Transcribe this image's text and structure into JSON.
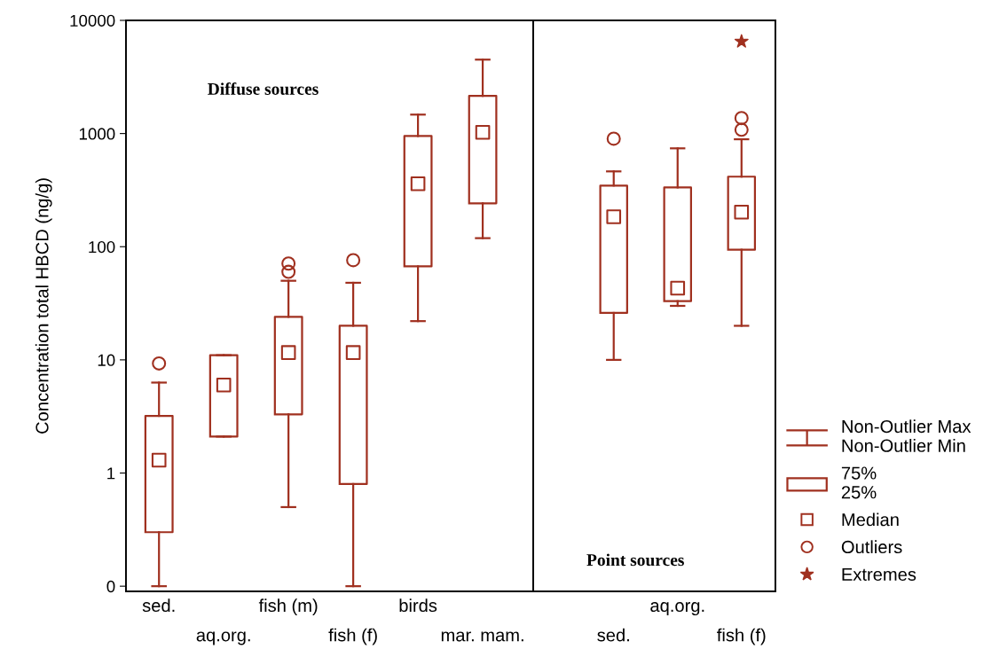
{
  "chart_data": [
    {
      "type": "box",
      "ylabel": "Concentration total HBCD (ng/g)",
      "log": "y",
      "ylim": [
        0.09,
        10000
      ],
      "yticks": [
        {
          "value": 0.1,
          "label": "0"
        },
        1,
        10,
        100,
        1000,
        10000
      ],
      "categories": [
        "sed.",
        "aq.org.",
        "fish (m)",
        "fish (f)",
        "birds",
        "mar. mam."
      ],
      "color": "#a0301f",
      "boxes": [
        {
          "low": 0.1,
          "q1": 0.3,
          "median": 1.3,
          "q3": 3.2,
          "high": 6.3,
          "outliers": [
            9.3
          ]
        },
        {
          "low": 2.1,
          "q1": 2.1,
          "median": 6,
          "q3": 11,
          "high": 11
        },
        {
          "low": 0.5,
          "q1": 3.3,
          "median": 11.6,
          "q3": 24,
          "high": 50,
          "outliers": [
            60,
            71
          ]
        },
        {
          "low": 0.1,
          "q1": 0.8,
          "median": 11.6,
          "q3": 20,
          "high": 48,
          "outliers": [
            76
          ]
        },
        {
          "low": 22,
          "q1": 67,
          "median": 360,
          "q3": 950,
          "high": 1470
        },
        {
          "low": 119,
          "q1": 242,
          "median": 1025,
          "q3": 2150,
          "high": 4500
        }
      ],
      "annotations": [
        "Diffuse sources"
      ]
    },
    {
      "type": "box",
      "log": "y",
      "ylim": [
        0.09,
        10000
      ],
      "tick_labels": "x",
      "categories": [
        "sed.",
        "aq.org.",
        "fish (f)"
      ],
      "color": "#a0301f",
      "boxes": [
        {
          "low": 10,
          "q1": 26,
          "median": 184,
          "q3": 347,
          "high": 463,
          "outliers": [
            900
          ]
        },
        {
          "low": 30,
          "q1": 33,
          "median": 43,
          "q3": 334,
          "high": 740
        },
        {
          "low": 20,
          "q1": 94,
          "median": 202,
          "q3": 416,
          "high": 890,
          "outliers": [
            1080,
            1370
          ]
        }
      ],
      "series": [
        {
          "type": "scatter",
          "name": "Extremes",
          "x": [
            "fish (f)"
          ],
          "values": [
            6500
          ],
          "color": "#a0301f",
          "marker": "star"
        }
      ],
      "legend": "right",
      "annotations": [
        "Point sources",
        "Non-Outlier Max",
        "Non-Outlier Min",
        "75%",
        "25%",
        "Median",
        "Outliers"
      ]
    }
  ]
}
